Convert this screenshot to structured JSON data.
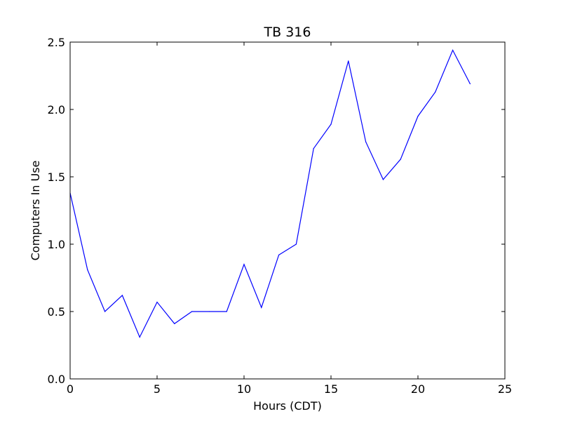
{
  "chart_data": {
    "type": "line",
    "title": "TB 316",
    "xlabel": "Hours (CDT)",
    "ylabel": "Computers In Use",
    "xlim": [
      0,
      25
    ],
    "ylim": [
      0.0,
      2.5
    ],
    "xticks": [
      "0",
      "5",
      "10",
      "15",
      "20",
      "25"
    ],
    "yticks": [
      "0.0",
      "0.5",
      "1.0",
      "1.5",
      "2.0",
      "2.5"
    ],
    "grid": false,
    "series": [
      {
        "color": "#0000ff",
        "x": [
          0,
          1,
          2,
          3,
          4,
          5,
          6,
          7,
          8,
          9,
          10,
          11,
          12,
          13,
          14,
          15,
          16,
          17,
          18,
          19,
          20,
          21,
          22,
          23
        ],
        "y": [
          1.38,
          0.81,
          0.5,
          0.62,
          0.31,
          0.57,
          0.41,
          0.5,
          0.5,
          0.5,
          0.85,
          0.53,
          0.92,
          1.0,
          1.71,
          1.89,
          2.36,
          1.76,
          1.48,
          1.63,
          1.95,
          2.13,
          2.44,
          2.19
        ]
      }
    ]
  }
}
